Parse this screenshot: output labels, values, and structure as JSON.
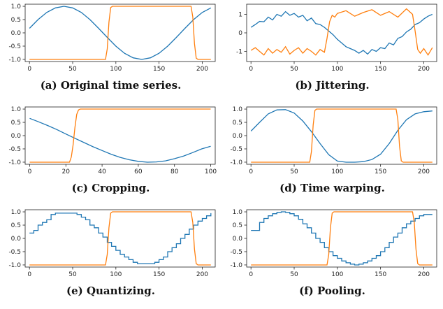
{
  "colors": {
    "series_blue": "#1f77b4",
    "series_orange": "#ff7f0e"
  },
  "chart_data": [
    {
      "id": "a",
      "type": "line",
      "caption": "(a) Original time series.",
      "xlim": [
        -5,
        215
      ],
      "ylim": [
        -1.08,
        1.08
      ],
      "xticks": [
        "0",
        "50",
        "100",
        "150",
        "200"
      ],
      "yticks": [
        "-1.0",
        "-0.5",
        "0.0",
        "0.5",
        "1.0"
      ],
      "series": [
        {
          "color": "blue",
          "x": [
            0,
            10,
            20,
            30,
            40,
            50,
            60,
            70,
            80,
            90,
            100,
            110,
            120,
            130,
            140,
            150,
            160,
            170,
            180,
            190,
            200,
            210
          ],
          "y": [
            0.17,
            0.5,
            0.77,
            0.94,
            1.0,
            0.94,
            0.77,
            0.5,
            0.17,
            -0.17,
            -0.5,
            -0.77,
            -0.94,
            -1.0,
            -0.94,
            -0.77,
            -0.5,
            -0.17,
            0.17,
            0.5,
            0.77,
            0.94
          ]
        },
        {
          "color": "orange",
          "x": [
            0,
            88,
            90,
            92,
            94,
            96,
            187,
            189,
            191,
            193,
            195,
            210
          ],
          "y": [
            -1.0,
            -1.0,
            -0.6,
            0.4,
            0.95,
            1.0,
            1.0,
            0.6,
            -0.4,
            -0.95,
            -1.0,
            -1.0
          ]
        }
      ]
    },
    {
      "id": "b",
      "type": "line",
      "caption": "(b) Jittering.",
      "xlim": [
        -5,
        215
      ],
      "ylim": [
        -1.55,
        1.55
      ],
      "xticks": [
        "0",
        "50",
        "100",
        "150",
        "200"
      ],
      "yticks": [
        "-1",
        "0",
        "1"
      ],
      "series": [
        {
          "color": "blue",
          "x": [
            0,
            5,
            10,
            15,
            20,
            25,
            30,
            35,
            40,
            45,
            50,
            55,
            60,
            65,
            70,
            75,
            80,
            85,
            90,
            95,
            100,
            105,
            110,
            115,
            120,
            125,
            130,
            135,
            140,
            145,
            150,
            155,
            160,
            165,
            170,
            175,
            180,
            185,
            190,
            195,
            200,
            205,
            210
          ],
          "y": [
            0.3,
            0.45,
            0.62,
            0.6,
            0.85,
            0.7,
            1.0,
            0.9,
            1.15,
            0.95,
            1.05,
            0.85,
            0.95,
            0.65,
            0.8,
            0.5,
            0.45,
            0.3,
            0.1,
            -0.1,
            -0.35,
            -0.55,
            -0.75,
            -0.85,
            -0.95,
            -1.1,
            -0.95,
            -1.15,
            -0.9,
            -1.0,
            -0.8,
            -0.85,
            -0.55,
            -0.65,
            -0.3,
            -0.2,
            0.05,
            0.2,
            0.45,
            0.55,
            0.75,
            0.9,
            1.0
          ]
        },
        {
          "color": "orange",
          "x": [
            0,
            5,
            10,
            15,
            20,
            25,
            30,
            35,
            40,
            45,
            50,
            55,
            60,
            65,
            70,
            75,
            80,
            85,
            88,
            91,
            94,
            97,
            100,
            110,
            120,
            130,
            140,
            150,
            160,
            170,
            180,
            187,
            190,
            193,
            196,
            200,
            205,
            210
          ],
          "y": [
            -0.95,
            -0.8,
            -1.0,
            -1.2,
            -0.85,
            -1.1,
            -0.9,
            -1.05,
            -0.75,
            -1.15,
            -0.95,
            -0.8,
            -1.1,
            -0.85,
            -1.0,
            -1.2,
            -0.9,
            -1.05,
            -0.3,
            0.6,
            0.95,
            0.85,
            1.05,
            1.2,
            0.9,
            1.1,
            1.25,
            0.95,
            1.15,
            0.85,
            1.3,
            1.0,
            0.1,
            -0.9,
            -1.1,
            -0.85,
            -1.2,
            -0.8
          ]
        }
      ]
    },
    {
      "id": "c",
      "type": "line",
      "caption": "(c) Cropping.",
      "xlim": [
        -2.5,
        102.5
      ],
      "ylim": [
        -1.08,
        1.08
      ],
      "xticks": [
        "0",
        "20",
        "40",
        "60",
        "80",
        "100"
      ],
      "yticks": [
        "-1.0",
        "-0.5",
        "0.0",
        "0.5",
        "1.0"
      ],
      "series": [
        {
          "color": "blue",
          "x": [
            0,
            5,
            10,
            15,
            20,
            25,
            30,
            35,
            40,
            45,
            50,
            55,
            60,
            65,
            70,
            75,
            80,
            85,
            90,
            95,
            100
          ],
          "y": [
            0.65,
            0.52,
            0.38,
            0.23,
            0.06,
            -0.1,
            -0.26,
            -0.42,
            -0.56,
            -0.7,
            -0.82,
            -0.91,
            -0.97,
            -1.0,
            -0.99,
            -0.95,
            -0.87,
            -0.77,
            -0.64,
            -0.5,
            -0.4
          ]
        },
        {
          "color": "orange",
          "x": [
            0,
            22,
            23,
            24,
            25,
            26,
            27,
            28,
            100
          ],
          "y": [
            -1.0,
            -1.0,
            -0.8,
            -0.35,
            0.3,
            0.8,
            0.97,
            1.0,
            1.0
          ]
        }
      ]
    },
    {
      "id": "d",
      "type": "line",
      "caption": "(d) Time warping.",
      "xlim": [
        -5,
        215
      ],
      "ylim": [
        -1.08,
        1.08
      ],
      "xticks": [
        "0",
        "50",
        "100",
        "150",
        "200"
      ],
      "yticks": [
        "-1.0",
        "-0.5",
        "0.0",
        "0.5",
        "1.0"
      ],
      "series": [
        {
          "color": "blue",
          "x": [
            0,
            10,
            20,
            30,
            40,
            50,
            60,
            70,
            80,
            90,
            100,
            110,
            120,
            130,
            140,
            150,
            160,
            170,
            180,
            190,
            200,
            210
          ],
          "y": [
            0.17,
            0.5,
            0.82,
            0.97,
            0.98,
            0.85,
            0.55,
            0.15,
            -0.3,
            -0.72,
            -0.96,
            -1.0,
            -1.0,
            -0.98,
            -0.9,
            -0.7,
            -0.3,
            0.2,
            0.6,
            0.82,
            0.9,
            0.93
          ]
        },
        {
          "color": "orange",
          "x": [
            0,
            68,
            70,
            72,
            74,
            76,
            168,
            170,
            172,
            174,
            176,
            210
          ],
          "y": [
            -1.0,
            -1.0,
            -0.6,
            0.4,
            0.95,
            1.0,
            1.0,
            0.6,
            -0.4,
            -0.95,
            -1.0,
            -1.0
          ]
        }
      ]
    },
    {
      "id": "e",
      "type": "line",
      "caption": "(e) Quantizing.",
      "xlim": [
        -5,
        215
      ],
      "ylim": [
        -1.08,
        1.08
      ],
      "xticks": [
        "0",
        "50",
        "100",
        "150",
        "200"
      ],
      "yticks": [
        "-1.0",
        "-0.5",
        "0.0",
        "0.5",
        "1.0"
      ],
      "series": [
        {
          "color": "blue",
          "step": true,
          "x": [
            0,
            5,
            10,
            15,
            20,
            25,
            30,
            35,
            40,
            45,
            50,
            55,
            60,
            65,
            70,
            75,
            80,
            85,
            90,
            95,
            100,
            105,
            110,
            115,
            120,
            125,
            130,
            135,
            140,
            145,
            150,
            155,
            160,
            165,
            170,
            175,
            180,
            185,
            190,
            195,
            200,
            205,
            210
          ],
          "y": [
            0.2,
            0.3,
            0.5,
            0.6,
            0.7,
            0.9,
            0.95,
            0.95,
            0.95,
            0.95,
            0.95,
            0.9,
            0.8,
            0.7,
            0.5,
            0.4,
            0.2,
            0.05,
            -0.15,
            -0.3,
            -0.45,
            -0.6,
            -0.7,
            -0.8,
            -0.9,
            -0.95,
            -0.95,
            -0.95,
            -0.95,
            -0.9,
            -0.8,
            -0.7,
            -0.5,
            -0.35,
            -0.2,
            0.0,
            0.15,
            0.35,
            0.5,
            0.65,
            0.75,
            0.85,
            0.95
          ]
        },
        {
          "color": "orange",
          "x": [
            0,
            88,
            90,
            92,
            94,
            96,
            187,
            189,
            191,
            193,
            195,
            210
          ],
          "y": [
            -1.0,
            -1.0,
            -0.6,
            0.4,
            0.95,
            1.0,
            1.0,
            0.6,
            -0.4,
            -0.95,
            -1.0,
            -1.0
          ]
        }
      ]
    },
    {
      "id": "f",
      "type": "line",
      "caption": "(f) Pooling.",
      "xlim": [
        -5,
        215
      ],
      "ylim": [
        -1.08,
        1.08
      ],
      "xticks": [
        "0",
        "50",
        "100",
        "150",
        "200"
      ],
      "yticks": [
        "-1.0",
        "-0.5",
        "0.0",
        "0.5",
        "1.0"
      ],
      "series": [
        {
          "color": "blue",
          "step": true,
          "x": [
            0,
            10,
            15,
            20,
            25,
            30,
            35,
            40,
            45,
            50,
            55,
            60,
            65,
            70,
            75,
            80,
            85,
            90,
            95,
            100,
            105,
            110,
            115,
            120,
            125,
            130,
            135,
            140,
            145,
            150,
            155,
            160,
            165,
            170,
            175,
            180,
            185,
            190,
            195,
            200,
            205,
            210
          ],
          "y": [
            0.3,
            0.6,
            0.75,
            0.85,
            0.93,
            0.98,
            1.0,
            0.98,
            0.93,
            0.85,
            0.72,
            0.55,
            0.4,
            0.2,
            0.0,
            -0.15,
            -0.35,
            -0.5,
            -0.65,
            -0.75,
            -0.85,
            -0.92,
            -0.97,
            -1.0,
            -0.97,
            -0.92,
            -0.85,
            -0.75,
            -0.65,
            -0.5,
            -0.35,
            -0.15,
            0.05,
            0.2,
            0.4,
            0.55,
            0.65,
            0.75,
            0.85,
            0.9,
            0.9,
            0.9
          ]
        },
        {
          "color": "orange",
          "x": [
            0,
            88,
            90,
            92,
            94,
            96,
            187,
            189,
            191,
            193,
            195,
            210
          ],
          "y": [
            -1.0,
            -1.0,
            -0.6,
            0.4,
            0.95,
            1.0,
            1.0,
            0.6,
            -0.4,
            -0.95,
            -1.0,
            -1.0
          ]
        }
      ]
    }
  ]
}
